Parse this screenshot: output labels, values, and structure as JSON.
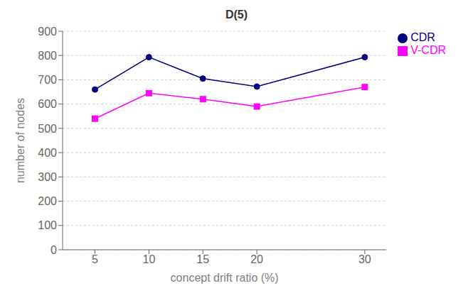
{
  "chart_data": {
    "type": "line",
    "title": "D(5)",
    "xlabel": "concept drift ratio (%)",
    "ylabel": "number of nodes",
    "x": [
      5,
      10,
      15,
      20,
      30
    ],
    "series": [
      {
        "name": "CDR",
        "color": "#000080",
        "marker": "circle",
        "values": [
          660,
          793,
          705,
          672,
          793
        ]
      },
      {
        "name": "V-CDR",
        "color": "#FF00FF",
        "marker": "square",
        "values": [
          540,
          645,
          620,
          590,
          670
        ]
      }
    ],
    "xlim": [
      2,
      32
    ],
    "xticks": [
      5,
      10,
      15,
      20,
      30
    ],
    "ylim": [
      0,
      900
    ],
    "yticks": [
      0,
      100,
      200,
      300,
      400,
      500,
      600,
      700,
      800,
      900
    ],
    "grid": "y",
    "legend": "upper right"
  }
}
